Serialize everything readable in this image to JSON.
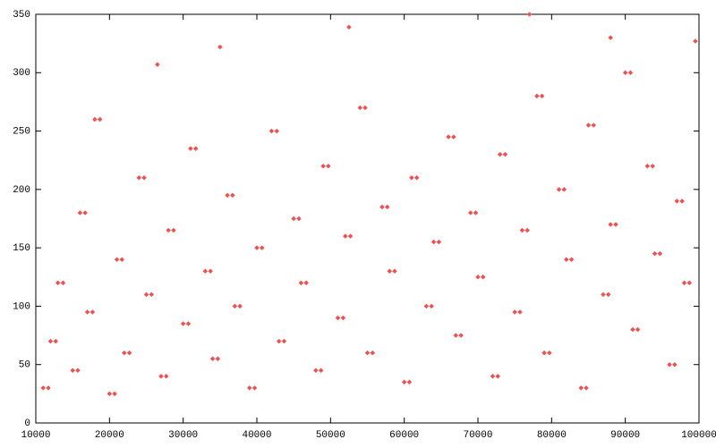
{
  "chart_data": {
    "type": "scatter",
    "color": "#f05050",
    "xlim": [
      10000,
      100000
    ],
    "xticks": [
      10000,
      20000,
      30000,
      40000,
      50000,
      60000,
      70000,
      80000,
      90000,
      100000
    ],
    "ylim": [
      0,
      350
    ],
    "yticks": [
      0,
      50,
      100,
      150,
      200,
      250,
      300,
      350
    ],
    "x": [
      11000,
      11700,
      12000,
      12700,
      13000,
      13700,
      15000,
      15700,
      16000,
      16700,
      17000,
      17700,
      18000,
      18700,
      20000,
      20700,
      21000,
      21700,
      22000,
      22700,
      24000,
      24700,
      25000,
      25700,
      27000,
      27700,
      28000,
      28700,
      30000,
      30700,
      31000,
      31700,
      33000,
      33700,
      34000,
      34700,
      36000,
      36700,
      37000,
      37700,
      39000,
      39700,
      40000,
      40700,
      42000,
      42700,
      43000,
      43700,
      45000,
      45700,
      46000,
      46700,
      48000,
      48700,
      49000,
      49700,
      51000,
      51700,
      52000,
      52700,
      54000,
      54700,
      55000,
      55700,
      57000,
      57700,
      58000,
      58700,
      60000,
      60700,
      61000,
      61700,
      63000,
      63700,
      64000,
      64700,
      66000,
      66700,
      67000,
      67700,
      69000,
      69700,
      70000,
      70700,
      72000,
      72700,
      73000,
      73700,
      75000,
      75700,
      76000,
      76700,
      78000,
      78700,
      79000,
      79700,
      81000,
      81700,
      82000,
      82700,
      84000,
      84700,
      85000,
      85700,
      87000,
      87700,
      88000,
      88700,
      90000,
      90700,
      91000,
      91700,
      93000,
      93700,
      94000,
      94700,
      96000,
      96700,
      97000,
      97700,
      98000,
      98700,
      26500,
      52500,
      77000,
      88000,
      99500,
      35000
    ],
    "y": [
      30,
      30,
      70,
      70,
      120,
      120,
      45,
      45,
      180,
      180,
      95,
      95,
      260,
      260,
      25,
      25,
      140,
      140,
      60,
      60,
      210,
      210,
      110,
      110,
      40,
      40,
      165,
      165,
      85,
      85,
      235,
      235,
      130,
      130,
      55,
      55,
      195,
      195,
      100,
      100,
      30,
      30,
      150,
      150,
      250,
      250,
      70,
      70,
      175,
      175,
      120,
      120,
      45,
      45,
      220,
      220,
      90,
      90,
      160,
      160,
      270,
      270,
      60,
      60,
      185,
      185,
      130,
      130,
      35,
      35,
      210,
      210,
      100,
      100,
      155,
      155,
      245,
      245,
      75,
      75,
      180,
      180,
      125,
      125,
      40,
      40,
      230,
      230,
      95,
      95,
      165,
      165,
      280,
      280,
      60,
      60,
      200,
      200,
      140,
      140,
      30,
      30,
      255,
      255,
      110,
      110,
      170,
      170,
      300,
      300,
      80,
      80,
      220,
      220,
      145,
      145,
      50,
      50,
      190,
      190,
      120,
      120,
      307,
      339,
      350,
      330,
      327,
      322
    ]
  }
}
